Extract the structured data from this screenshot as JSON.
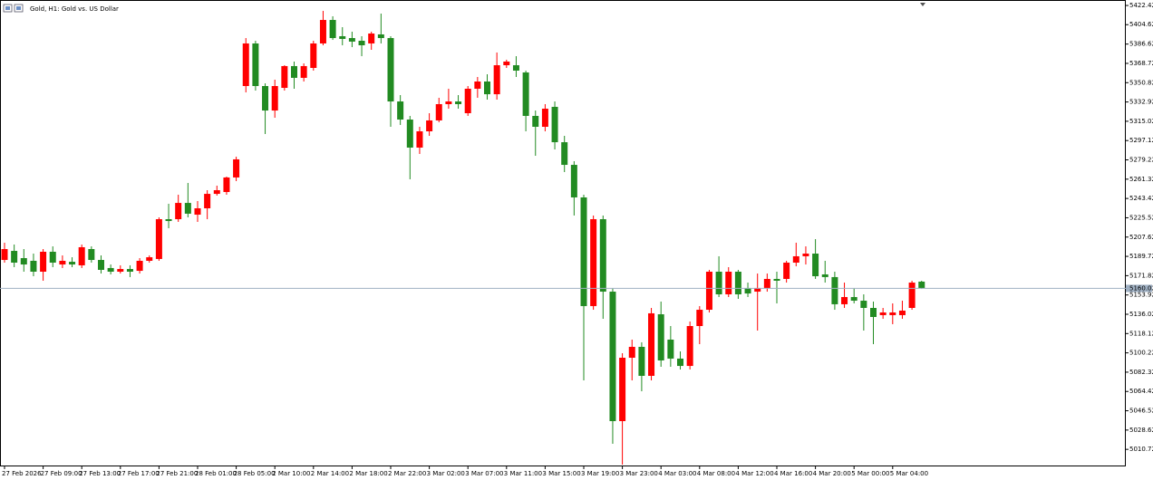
{
  "chart_data": {
    "type": "candlestick",
    "title": "Gold, H1:  Gold vs. US Dollar",
    "categories": [
      "27 Feb 2026",
      null,
      null,
      null,
      "27 Feb 09:00",
      null,
      null,
      null,
      "27 Feb 13:00",
      null,
      null,
      null,
      "27 Feb 17:00",
      null,
      null,
      null,
      "27 Feb 21:00",
      null,
      null,
      null,
      "28 Feb 01:00",
      null,
      null,
      null,
      "28 Feb 05:00",
      null,
      null,
      null,
      "2 Mar 10:00",
      null,
      null,
      null,
      "2 Mar 14:00",
      null,
      null,
      null,
      "2 Mar 18:00",
      null,
      null,
      null,
      "2 Mar 22:00",
      null,
      null,
      null,
      "3 Mar 02:00",
      null,
      null,
      null,
      "3 Mar 07:00",
      null,
      null,
      null,
      "3 Mar 11:00",
      null,
      null,
      null,
      "3 Mar 15:00",
      null,
      null,
      null,
      "3 Mar 19:00",
      null,
      null,
      null,
      "3 Mar 23:00",
      null,
      null,
      null,
      "4 Mar 03:00",
      null,
      null,
      null,
      "4 Mar 08:00",
      null,
      null,
      null,
      "4 Mar 12:00",
      null,
      null,
      null,
      "4 Mar 16:00",
      null,
      null,
      null,
      "4 Mar 20:00",
      null,
      null,
      null,
      "5 Mar 00:00",
      null,
      null,
      null,
      "5 Mar 04:00",
      null,
      null,
      null
    ],
    "open": [
      5186.4,
      5194.8,
      5188.1,
      5185.6,
      5175.5,
      5194.0,
      5182.2,
      5184.7,
      5181.4,
      5196.5,
      5186.4,
      5178.9,
      5175.5,
      5178.0,
      5176.3,
      5185.6,
      5187.3,
      5224.2,
      5224.2,
      5239.3,
      5228.4,
      5234.3,
      5247.7,
      5249.4,
      5262.9,
      5347.7,
      5387.2,
      5347.7,
      5325.0,
      5346.0,
      5366.2,
      5355.3,
      5364.5,
      5387.2,
      5409.0,
      5393.9,
      5392.2,
      5389.7,
      5387.2,
      5395.6,
      5392.2,
      5333.4,
      5316.6,
      5290.6,
      5305.7,
      5315.8,
      5330.9,
      5333.4,
      5322.5,
      5345.2,
      5351.9,
      5340.1,
      5367.0,
      5367.0,
      5360.3,
      5320.0,
      5309.9,
      5328.4,
      5295.6,
      5274.6,
      5244.4,
      5143.6,
      5224.2,
      5157.0,
      5036.9,
      5095.7,
      5105.8,
      5078.9,
      5136.0,
      5112.5,
      5094.9,
      5088.1,
      5125.1,
      5140.2,
      5175.5,
      5154.5,
      5175.5,
      5160.4,
      5157.0,
      5160.4,
      5168.8,
      5168.8,
      5183.9,
      5189.8,
      5192.3,
      5173.0,
      5170.5,
      5145.3,
      5152.0,
      5148.6,
      5141.9,
      5135.2,
      5135.2,
      5135.2,
      5141.9,
      5166.3
    ],
    "high": [
      5202.4,
      5200.7,
      5196.5,
      5192.3,
      5196.5,
      5199.0,
      5190.6,
      5188.9,
      5200.7,
      5199.0,
      5190.6,
      5182.2,
      5181.4,
      5181.4,
      5188.1,
      5190.6,
      5225.9,
      5238.5,
      5246.9,
      5257.8,
      5241.0,
      5251.1,
      5255.3,
      5263.7,
      5282.2,
      5392.2,
      5389.7,
      5350.2,
      5353.6,
      5367.0,
      5370.4,
      5368.7,
      5389.7,
      5417.4,
      5412.4,
      5402.3,
      5398.1,
      5393.9,
      5398.1,
      5414.9,
      5393.9,
      5339.3,
      5320.0,
      5309.9,
      5322.5,
      5336.8,
      5345.2,
      5339.3,
      5347.7,
      5356.1,
      5358.6,
      5378.8,
      5372.1,
      5375.4,
      5362.0,
      5325.0,
      5330.9,
      5333.4,
      5301.5,
      5278.0,
      5246.9,
      5227.6,
      5227.6,
      5160.4,
      5099.9,
      5112.5,
      5110.0,
      5141.9,
      5147.8,
      5125.1,
      5101.6,
      5129.3,
      5143.6,
      5177.2,
      5189.8,
      5179.7,
      5177.2,
      5165.4,
      5173.8,
      5173.8,
      5175.5,
      5185.6,
      5202.4,
      5199.0,
      5205.7,
      5185.6,
      5175.5,
      5165.4,
      5160.4,
      5154.5,
      5147.8,
      5141.9,
      5146.1,
      5148.6,
      5167.1,
      5167.1
    ],
    "low": [
      5183.9,
      5179.7,
      5175.5,
      5171.3,
      5167.1,
      5179.7,
      5178.9,
      5179.7,
      5178.9,
      5183.9,
      5173.8,
      5173.0,
      5173.8,
      5170.5,
      5173.8,
      5183.9,
      5185.6,
      5215.8,
      5221.7,
      5225.9,
      5221.7,
      5224.2,
      5246.1,
      5246.9,
      5259.5,
      5341.8,
      5343.5,
      5303.2,
      5318.3,
      5343.5,
      5345.2,
      5351.9,
      5362.0,
      5385.5,
      5390.5,
      5385.5,
      5383.8,
      5375.4,
      5381.3,
      5387.2,
      5309.9,
      5311.6,
      5261.2,
      5284.7,
      5301.5,
      5314.1,
      5326.7,
      5326.7,
      5320.0,
      5336.8,
      5335.1,
      5335.1,
      5364.5,
      5356.1,
      5305.7,
      5283.0,
      5305.7,
      5288.9,
      5267.9,
      5227.6,
      5074.7,
      5140.2,
      5131.8,
      5015.9,
      4996.6,
      5074.7,
      5064.6,
      5074.7,
      5087.3,
      5087.3,
      5084.8,
      5084.8,
      5108.3,
      5137.7,
      5152.0,
      5152.0,
      5150.3,
      5152.0,
      5120.9,
      5157.0,
      5146.1,
      5165.4,
      5180.5,
      5182.2,
      5168.8,
      5165.4,
      5140.2,
      5141.9,
      5146.1,
      5120.9,
      5108.3,
      5131.8,
      5126.8,
      5131.8,
      5140.2,
      5159.5
    ],
    "close": [
      5196.5,
      5183.9,
      5182.2,
      5175.5,
      5194.0,
      5183.9,
      5185.6,
      5182.2,
      5198.2,
      5186.4,
      5177.2,
      5175.5,
      5178.0,
      5175.5,
      5185.6,
      5188.9,
      5224.2,
      5222.5,
      5239.3,
      5229.3,
      5234.3,
      5247.7,
      5251.1,
      5262.9,
      5279.7,
      5387.2,
      5347.7,
      5325.0,
      5347.7,
      5366.2,
      5355.3,
      5366.2,
      5387.2,
      5409.0,
      5392.2,
      5391.4,
      5388.9,
      5385.5,
      5396.4,
      5392.2,
      5333.4,
      5316.6,
      5290.6,
      5305.7,
      5315.8,
      5330.9,
      5333.4,
      5330.9,
      5345.2,
      5351.9,
      5340.1,
      5367.0,
      5370.4,
      5362.0,
      5320.0,
      5309.9,
      5326.7,
      5295.6,
      5274.6,
      5244.4,
      5143.6,
      5224.2,
      5157.0,
      5036.9,
      5095.7,
      5105.8,
      5078.9,
      5136.9,
      5093.2,
      5094.9,
      5088.1,
      5125.1,
      5140.2,
      5175.5,
      5154.5,
      5175.5,
      5154.5,
      5155.3,
      5160.4,
      5168.8,
      5167.1,
      5183.9,
      5189.8,
      5192.3,
      5171.3,
      5170.5,
      5145.3,
      5152.0,
      5148.6,
      5141.9,
      5133.5,
      5137.7,
      5137.7,
      5139.4,
      5165.4,
      5160.02
    ],
    "up_color": "#ff0000",
    "down_color": "#228b22",
    "last_price": 5160.02,
    "last_price_color": "#9fb0c3",
    "ylim": [
      4994.9,
      5427.5
    ],
    "yticks": [
      5422.42,
      5404.62,
      5386.62,
      5368.72,
      5350.82,
      5332.92,
      5315.02,
      5297.12,
      5279.22,
      5261.32,
      5243.42,
      5225.52,
      5207.62,
      5189.72,
      5171.82,
      5153.92,
      5136.02,
      5118.12,
      5100.22,
      5082.32,
      5064.42,
      5046.52,
      5028.62,
      5010.72
    ],
    "grid": false
  }
}
